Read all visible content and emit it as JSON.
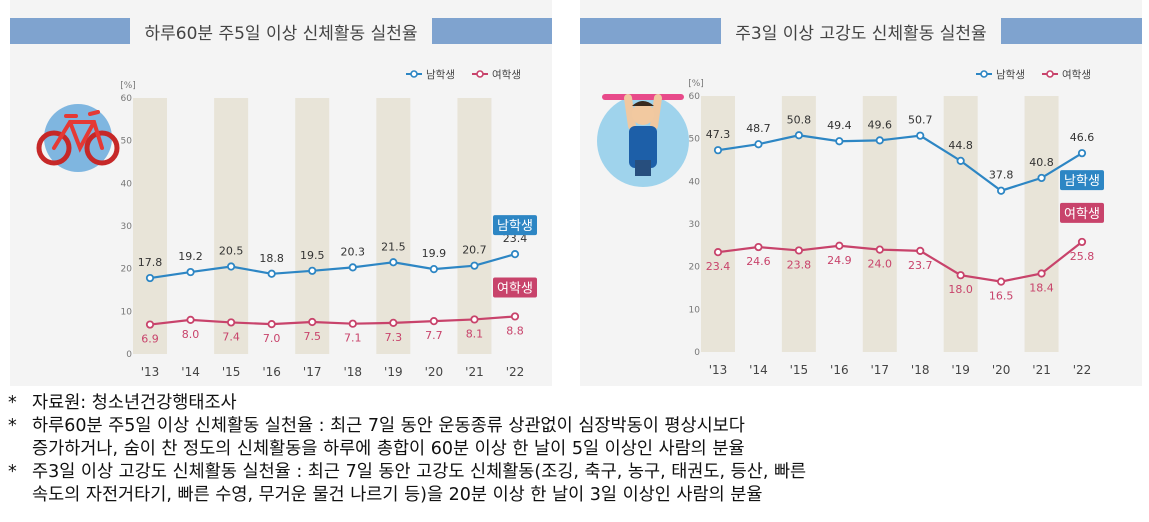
{
  "colors": {
    "male": "#2d86c4",
    "female": "#c8436b",
    "column_band": "#e8e4d8",
    "title_band": "#7fa3cf",
    "panel_bg": "#f4f4f4"
  },
  "chart_data": [
    {
      "type": "line",
      "title": "하루60분 주5일 이상 신체활동 실천율",
      "ylabel": "[%]",
      "ylim": [
        0,
        60
      ],
      "yticks": [
        "0",
        "10",
        "20",
        "30",
        "40",
        "50",
        "60"
      ],
      "categories": [
        "'13",
        "'14",
        "'15",
        "'16",
        "'17",
        "'18",
        "'19",
        "'20",
        "'21",
        "'22"
      ],
      "legend_position": "top-right",
      "grid": false,
      "icon": "bicycle-icon",
      "series": [
        {
          "name": "남학생",
          "color": "#2d86c4",
          "end_label": "남학생",
          "values": [
            17.8,
            19.2,
            20.5,
            18.8,
            19.5,
            20.3,
            21.5,
            19.9,
            20.7,
            23.4
          ],
          "labels": [
            "17.8",
            "19.2",
            "20.5",
            "18.8",
            "19.5",
            "20.3",
            "21.5",
            "19.9",
            "20.7",
            "23.4"
          ]
        },
        {
          "name": "여학생",
          "color": "#c8436b",
          "end_label": "여학생",
          "values": [
            6.9,
            8.0,
            7.4,
            7.0,
            7.5,
            7.1,
            7.3,
            7.7,
            8.1,
            8.8
          ],
          "labels": [
            "6.9",
            "8.0",
            "7.4",
            "7.0",
            "7.5",
            "7.1",
            "7.3",
            "7.7",
            "8.1",
            "8.8"
          ]
        }
      ]
    },
    {
      "type": "line",
      "title": "주3일 이상 고강도 신체활동 실천율",
      "ylabel": "[%]",
      "ylim": [
        0,
        60
      ],
      "yticks": [
        "0",
        "10",
        "20",
        "30",
        "40",
        "50",
        "60"
      ],
      "categories": [
        "'13",
        "'14",
        "'15",
        "'16",
        "'17",
        "'18",
        "'19",
        "'20",
        "'21",
        "'22"
      ],
      "legend_position": "top-right",
      "grid": false,
      "icon": "pull-up-icon",
      "series": [
        {
          "name": "남학생",
          "color": "#2d86c4",
          "end_label": "남학생",
          "values": [
            47.3,
            48.7,
            50.8,
            49.4,
            49.6,
            50.7,
            44.8,
            37.8,
            40.8,
            46.6
          ],
          "labels": [
            "47.3",
            "48.7",
            "50.8",
            "49.4",
            "49.6",
            "50.7",
            "44.8",
            "37.8",
            "40.8",
            "46.6"
          ]
        },
        {
          "name": "여학생",
          "color": "#c8436b",
          "end_label": "여학생",
          "values": [
            23.4,
            24.6,
            23.8,
            24.9,
            24.0,
            23.7,
            18.0,
            16.5,
            18.4,
            25.8
          ],
          "labels": [
            "23.4",
            "24.6",
            "23.8",
            "24.9",
            "24.0",
            "23.7",
            "18.0",
            "16.5",
            "18.4",
            "25.8"
          ]
        }
      ]
    }
  ],
  "notes": {
    "source": "자료원: 청소년건강행태조사",
    "note1_line1": "하루60분 주5일 이상 신체활동 실천율 : 최근 7일 동안 운동종류 상관없이 심장박동이 평상시보다",
    "note1_line2": "증가하거나, 숨이 찬 정도의 신체활동을 하루에 총합이 60분 이상 한 날이 5일 이상인 사람의 분율",
    "note2_line1": "주3일 이상 고강도 신체활동 실천율 : 최근 7일 동안 고강도 신체활동(조깅, 축구, 농구, 태권도, 등산, 빠른",
    "note2_line2": "속도의 자전거타기, 빠른 수영, 무거운 물건 나르기 등)을 20분 이상 한 날이 3일 이상인 사람의 분율"
  }
}
